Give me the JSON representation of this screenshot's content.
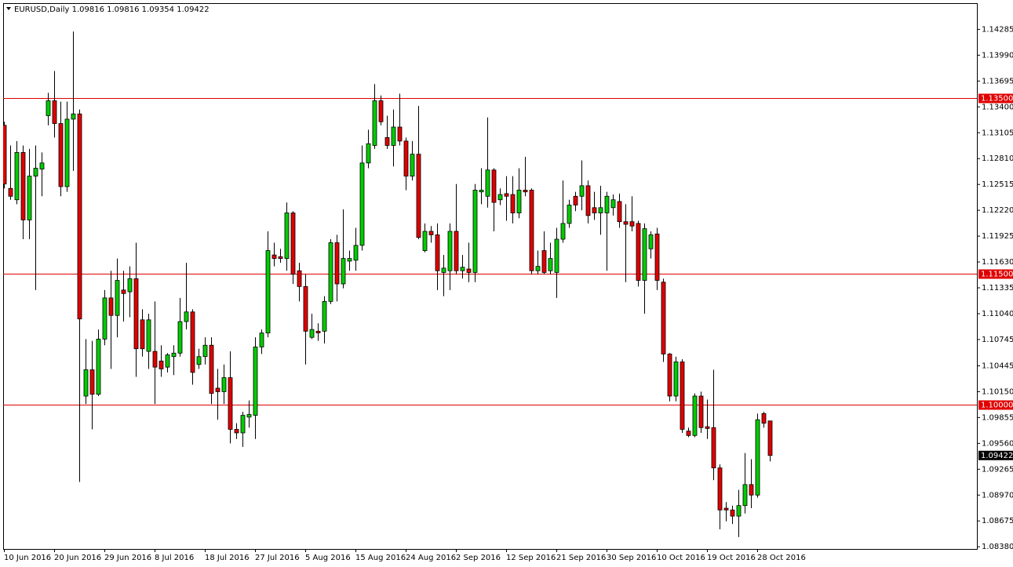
{
  "chart_data": {
    "type": "candlestick",
    "title": "EURUSD,Daily  1.09816 1.09816 1.09354 1.09422",
    "categories": [
      "10 Jun 2016",
      null,
      null,
      null,
      null,
      null,
      null,
      null,
      "20 Jun 2016",
      null,
      null,
      null,
      null,
      null,
      null,
      null,
      "29 Jun 2016",
      null,
      null,
      null,
      null,
      null,
      null,
      null,
      "8 Jul 2016",
      null,
      null,
      null,
      null,
      null,
      null,
      null,
      "18 Jul 2016",
      null,
      null,
      null,
      null,
      null,
      null,
      null,
      "27 Jul 2016",
      null,
      null,
      null,
      null,
      null,
      null,
      null,
      "5 Aug 2016",
      null,
      null,
      null,
      null,
      null,
      null,
      null,
      "15 Aug 2016",
      null,
      null,
      null,
      null,
      null,
      null,
      null,
      "24 Aug 2016",
      null,
      null,
      null,
      null,
      null,
      null,
      null,
      "2 Sep 2016",
      null,
      null,
      null,
      null,
      null,
      null,
      null,
      "12 Sep 2016",
      null,
      null,
      null,
      null,
      null,
      null,
      null,
      "21 Sep 2016",
      null,
      null,
      null,
      null,
      null,
      null,
      null,
      "30 Sep 2016",
      null,
      null,
      null,
      null,
      null,
      null,
      null,
      "10 Oct 2016",
      null,
      null,
      null,
      null,
      null,
      null,
      null,
      "19 Oct 2016",
      null,
      null,
      null,
      null,
      null,
      null,
      null,
      "28 Oct 2016",
      null,
      null
    ],
    "open": [
      1.1319,
      1.1247,
      1.1234,
      1.1288,
      1.1211,
      1.1261,
      1.1269,
      1.133,
      1.1347,
      1.1321,
      1.1249,
      1.1326,
      1.1332,
      1.101,
      1.104,
      1.1012,
      1.1075,
      1.1122,
      1.1102,
      1.1131,
      1.1129,
      1.1144,
      1.1097,
      1.1061,
      1.1061,
      1.105,
      1.1043,
      1.1055,
      1.1059,
      1.1095,
      1.1106,
      1.1046,
      1.1055,
      1.1068,
      1.1019,
      1.1015,
      1.1031,
      1.0972,
      1.0968,
      1.0986,
      1.0988,
      1.1066,
      1.1082,
      1.1171,
      1.1169,
      1.1167,
      1.1219,
      1.1153,
      1.1135,
      1.1077,
      1.1084,
      1.1084,
      1.1118,
      1.1185,
      1.1138,
      1.1164,
      1.1165,
      1.1182,
      1.1276,
      1.1296,
      1.1347,
      1.1305,
      1.1296,
      1.1317,
      1.1301,
      1.1261,
      1.1286,
      1.1176,
      1.1198,
      1.1194,
      1.1151,
      1.1153,
      1.1198,
      1.1153,
      1.1155,
      1.1151,
      1.1243,
      1.1238,
      1.1268,
      1.1234,
      1.1241,
      1.124,
      1.1219,
      1.1245,
      1.1245,
      1.1153,
      1.1176,
      1.1153,
      1.1151,
      1.1189,
      1.1207,
      1.1238,
      1.1238,
      1.125,
      1.1225,
      1.1219,
      1.1219,
      1.1225,
      1.1232,
      1.1209,
      1.1209,
      1.1207,
      1.1142,
      1.1178,
      1.1195,
      1.114,
      1.1058,
      1.101,
      1.1049,
      1.097,
      1.0965,
      1.101,
      1.0975,
      1.0974,
      1.0928,
      1.0882,
      1.088,
      1.0873,
      1.0885,
      1.0909,
      1.0897,
      1.099,
      1.09816
    ],
    "high": [
      1.1323,
      1.1296,
      1.1301,
      1.1296,
      1.1292,
      1.1296,
      1.1288,
      1.1356,
      1.1381,
      1.1346,
      1.1346,
      1.1426,
      1.1337,
      1.1075,
      1.1073,
      1.1086,
      1.1131,
      1.1153,
      1.1167,
      1.1153,
      1.1158,
      1.1185,
      1.1109,
      1.1104,
      1.1118,
      1.1068,
      1.1059,
      1.1068,
      1.1122,
      1.1162,
      1.1109,
      1.1064,
      1.1077,
      1.1077,
      1.1041,
      1.1046,
      1.1061,
      1.0979,
      1.0992,
      1.1005,
      1.1077,
      1.1086,
      1.1198,
      1.1185,
      1.1178,
      1.1231,
      1.1221,
      1.1162,
      1.1149,
      1.1104,
      1.1093,
      1.1124,
      1.1189,
      1.1194,
      1.1223,
      1.1176,
      1.1202,
      1.1296,
      1.1314,
      1.1366,
      1.1353,
      1.133,
      1.1337,
      1.1355,
      1.1305,
      1.1301,
      1.1341,
      1.1207,
      1.1204,
      1.1207,
      1.1171,
      1.1207,
      1.1252,
      1.1171,
      1.1185,
      1.1252,
      1.127,
      1.1328,
      1.127,
      1.1247,
      1.1261,
      1.1261,
      1.127,
      1.1283,
      1.1247,
      1.1176,
      1.1198,
      1.1185,
      1.1202,
      1.1256,
      1.1234,
      1.1243,
      1.1279,
      1.1256,
      1.1243,
      1.125,
      1.1243,
      1.124,
      1.1241,
      1.1229,
      1.1238,
      1.121,
      1.1207,
      1.1198,
      1.1202,
      1.1144,
      1.1059,
      1.1055,
      1.1052,
      1.0974,
      1.1013,
      1.1015,
      1.1006,
      1.104,
      1.0932,
      1.0889,
      1.0885,
      1.0903,
      1.0945,
      1.0938,
      1.099,
      1.0992,
      1.09816
    ],
    "low": [
      1.1247,
      1.1234,
      1.1229,
      1.1189,
      1.1189,
      1.1131,
      1.1238,
      1.1319,
      1.1305,
      1.1238,
      1.1243,
      1.1267,
      1.0912,
      1.1001,
      1.0972,
      1.101,
      1.1068,
      1.1041,
      1.1077,
      1.1095,
      1.11,
      1.1032,
      1.1055,
      1.1041,
      1.1001,
      1.1032,
      1.1037,
      1.1034,
      1.1055,
      1.1086,
      1.1023,
      1.1041,
      1.1046,
      1.1001,
      1.0983,
      1.1001,
      1.0956,
      1.0961,
      1.0952,
      1.0974,
      1.0961,
      1.1058,
      1.1077,
      1.1158,
      1.1162,
      1.1153,
      1.1138,
      1.1118,
      1.1046,
      1.1075,
      1.1073,
      1.107,
      1.1115,
      1.1118,
      1.1133,
      1.1153,
      1.1153,
      1.1176,
      1.127,
      1.1292,
      1.1319,
      1.1292,
      1.1272,
      1.1296,
      1.1245,
      1.1256,
      1.1189,
      1.1174,
      1.1185,
      1.1131,
      1.1124,
      1.1131,
      1.1149,
      1.1144,
      1.114,
      1.114,
      1.1229,
      1.1225,
      1.1198,
      1.1228,
      1.121,
      1.1207,
      1.1213,
      1.1238,
      1.1149,
      1.1149,
      1.1149,
      1.1149,
      1.1122,
      1.1185,
      1.1202,
      1.1221,
      1.1222,
      1.1207,
      1.1211,
      1.1194,
      1.1153,
      1.1216,
      1.1202,
      1.114,
      1.1198,
      1.1135,
      1.1104,
      1.1167,
      1.1131,
      1.1049,
      1.1004,
      1.1004,
      1.0968,
      1.0963,
      1.0963,
      1.0968,
      1.0961,
      1.0914,
      1.0858,
      1.0867,
      1.0864,
      1.0849,
      1.0876,
      1.0882,
      1.0894,
      1.0974,
      1.09354
    ],
    "close": [
      1.1252,
      1.1238,
      1.1288,
      1.1211,
      1.1261,
      1.127,
      1.1276,
      1.1347,
      1.1321,
      1.1249,
      1.1326,
      1.1332,
      1.1098,
      1.104,
      1.1012,
      1.1075,
      1.1122,
      1.1102,
      1.1142,
      1.1127,
      1.1144,
      1.1064,
      1.1064,
      1.1097,
      1.1043,
      1.1041,
      1.1057,
      1.1059,
      1.1095,
      1.1106,
      1.1037,
      1.1055,
      1.1068,
      1.1013,
      1.1015,
      1.1031,
      1.0972,
      1.0968,
      1.0988,
      1.0989,
      1.1066,
      1.1082,
      1.1176,
      1.1167,
      1.1167,
      1.1219,
      1.1149,
      1.1135,
      1.1084,
      1.1086,
      1.1082,
      1.1118,
      1.1185,
      1.1138,
      1.1167,
      1.1167,
      1.1182,
      1.1276,
      1.1298,
      1.1347,
      1.1323,
      1.1296,
      1.1317,
      1.1301,
      1.1261,
      1.1286,
      1.1191,
      1.1198,
      1.1194,
      1.1153,
      1.1156,
      1.1198,
      1.1153,
      1.1157,
      1.1151,
      1.1245,
      1.1245,
      1.1268,
      1.1231,
      1.124,
      1.1238,
      1.1219,
      1.1245,
      1.1243,
      1.1153,
      1.1158,
      1.1151,
      1.1167,
      1.1189,
      1.1207,
      1.1228,
      1.1228,
      1.125,
      1.1216,
      1.1219,
      1.1225,
      1.1238,
      1.1234,
      1.1209,
      1.1206,
      1.1204,
      1.1142,
      1.1201,
      1.1194,
      1.1142,
      1.1058,
      1.101,
      1.1049,
      1.0972,
      1.0965,
      1.101,
      1.0974,
      1.0973,
      1.0928,
      1.088,
      1.088,
      1.0873,
      1.0885,
      1.0909,
      1.0897,
      1.0983,
      1.0979,
      1.09422
    ],
    "up_color": "#00cc00",
    "down_color": "#e00000",
    "line_color": "#e00000",
    "ylim": [
      1.08355,
      1.14584
    ],
    "yticks": [
      1.14285,
      {
        "value": 1.1399,
        "label": "1.13990"
      },
      1.13695,
      {
        "value": 1.134,
        "label": "1.13400"
      },
      1.13105,
      {
        "value": 1.1281,
        "label": "1.12810"
      },
      1.12515,
      {
        "value": 1.1222,
        "label": "1.12220"
      },
      1.11925,
      {
        "value": 1.1163,
        "label": "1.11630"
      },
      1.11335,
      {
        "value": 1.1104,
        "label": "1.11040"
      },
      1.10745,
      1.10445,
      {
        "value": 1.1015,
        "label": "1.10150"
      },
      1.09855,
      {
        "value": 1.0956,
        "label": "1.09560"
      },
      1.09265,
      {
        "value": 1.0897,
        "label": "1.08970"
      },
      1.08675,
      {
        "value": 1.0838,
        "label": "1.08380"
      }
    ],
    "hlines": [
      {
        "value": 1.135,
        "label": "1.13500"
      },
      {
        "value": 1.115,
        "label": "1.11500"
      },
      {
        "value": 1.1,
        "label": "1.10000"
      }
    ],
    "current_price": {
      "value": 1.09422,
      "label": "1.09422"
    }
  }
}
